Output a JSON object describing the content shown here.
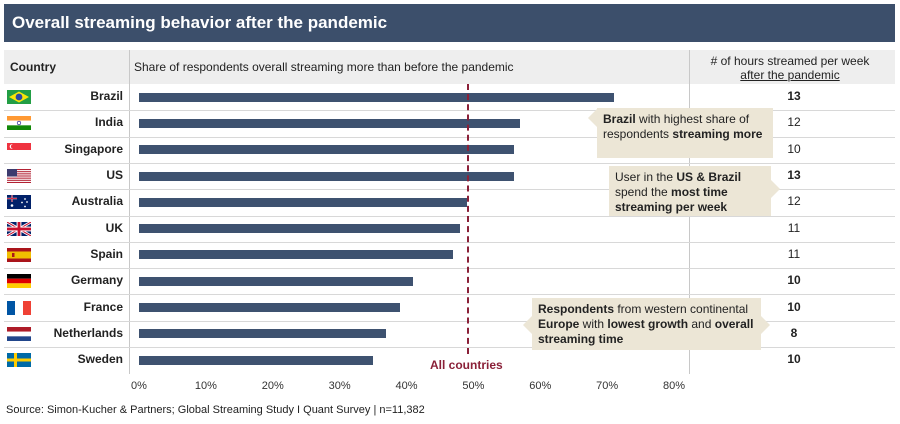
{
  "title": "Overall streaming behavior after the pandemic",
  "header": {
    "country": "Country",
    "share": "Share of respondents overall streaming more than before the pandemic",
    "hours_line1": "# of hours streamed per week",
    "hours_line2": "after the pandemic"
  },
  "chart_data": {
    "type": "bar",
    "orientation": "horizontal",
    "categories": [
      "Brazil",
      "India",
      "Singapore",
      "US",
      "Australia",
      "UK",
      "Spain",
      "Germany",
      "France",
      "Netherlands",
      "Sweden"
    ],
    "values": [
      71,
      57,
      56,
      56,
      49,
      48,
      47,
      41,
      39,
      37,
      35
    ],
    "hours_per_week": [
      13,
      12,
      10,
      13,
      12,
      11,
      11,
      10,
      10,
      8,
      10
    ],
    "hours_bold": [
      true,
      false,
      false,
      true,
      false,
      false,
      false,
      true,
      true,
      true,
      true
    ],
    "flags": [
      "br",
      "in",
      "sg",
      "us",
      "au",
      "gb",
      "es",
      "de",
      "fr",
      "nl",
      "se"
    ],
    "xlim": [
      0,
      80
    ],
    "xticks": [
      "0%",
      "10%",
      "20%",
      "30%",
      "40%",
      "50%",
      "60%",
      "70%",
      "80%"
    ],
    "reference_line": {
      "value": 49,
      "label": "All countries",
      "color": "#8a2038"
    },
    "bar_color": "#3e5270"
  },
  "callouts": [
    [
      {
        "t": "Brazil",
        "b": true
      },
      {
        "t": " with highest share of respondents ",
        "b": false
      },
      {
        "t": "streaming more",
        "b": true
      }
    ],
    [
      {
        "t": "User in the ",
        "b": false
      },
      {
        "t": "US & Brazil",
        "b": true
      },
      {
        "t": " spend the ",
        "b": false
      },
      {
        "t": "most time streaming per week",
        "b": true
      }
    ],
    [
      {
        "t": "Respondents",
        "b": true
      },
      {
        "t": " from western continental ",
        "b": false
      },
      {
        "t": "Europe",
        "b": true
      },
      {
        "t": " with ",
        "b": false
      },
      {
        "t": "lowest growth",
        "b": true
      },
      {
        "t": " and ",
        "b": false
      },
      {
        "t": "overall streaming time",
        "b": true
      }
    ]
  ],
  "source": "Source: Simon-Kucher & Partners; Global Streaming Study I Quant Survey  |  n=11,382"
}
